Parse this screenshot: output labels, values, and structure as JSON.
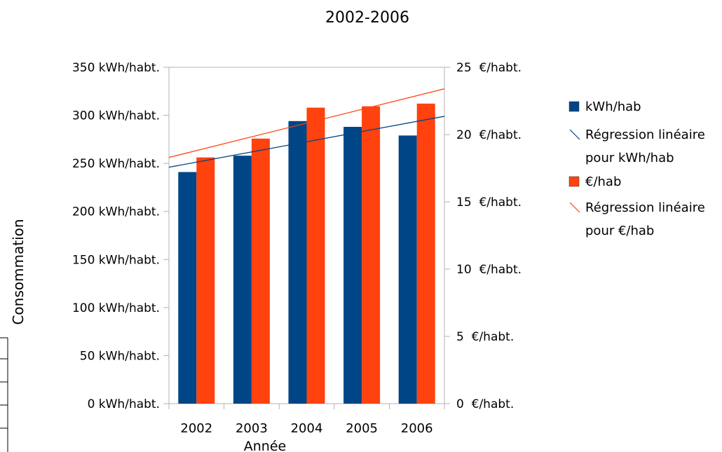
{
  "chart_data": {
    "type": "bar",
    "title": "2002-2006",
    "xlabel": "Année",
    "ylabel": "Consommation",
    "categories": [
      "2002",
      "2003",
      "2004",
      "2005",
      "2006"
    ],
    "y_left": {
      "ylim": [
        0,
        350
      ],
      "ticks": [
        0,
        50,
        100,
        150,
        200,
        250,
        300,
        350
      ],
      "tick_labels": [
        "0 kWh/habt.",
        "50 kWh/habt.",
        "100 kWh/habt.",
        "150 kWh/habt.",
        "200 kWh/habt.",
        "250 kWh/habt.",
        "300 kWh/habt.",
        "350 kWh/habt."
      ]
    },
    "y_right": {
      "ylim": [
        0,
        25
      ],
      "ticks": [
        0,
        5,
        10,
        15,
        20,
        25
      ],
      "tick_labels": [
        "0  €/habt.",
        "5  €/habt.",
        "10  €/habt.",
        "15  €/habt.",
        "20  €/habt.",
        "25  €/habt."
      ]
    },
    "series": [
      {
        "name": "kWh/hab",
        "axis": "left",
        "values": [
          241,
          258,
          294,
          288,
          279
        ],
        "color": "#004586"
      },
      {
        "name": "€/hab",
        "axis": "right",
        "values": [
          18.3,
          19.7,
          22.0,
          22.1,
          22.3
        ],
        "color": "#ff420e"
      }
    ],
    "trendlines": [
      {
        "name": "Régression linéaire pour kWh/hab",
        "axis": "left",
        "start": 246,
        "end": 299,
        "color": "#004586"
      },
      {
        "name": "Régression linéaire pour €/hab",
        "axis": "right",
        "start": 18.3,
        "end": 23.4,
        "color": "#ff420e"
      }
    ],
    "legend": {
      "placement": "right",
      "items": [
        {
          "kind": "box",
          "color": "#004586",
          "lines": [
            "kWh/hab"
          ]
        },
        {
          "kind": "line",
          "color": "#004586",
          "lines": [
            "Régression linéaire",
            "pour kWh/hab"
          ]
        },
        {
          "kind": "box",
          "color": "#ff420e",
          "lines": [
            "€/hab"
          ]
        },
        {
          "kind": "line",
          "color": "#ff420e",
          "lines": [
            "Régression linéaire",
            "pour €/hab"
          ]
        }
      ]
    },
    "grid": {
      "horizontal": false,
      "vertical": false
    }
  }
}
